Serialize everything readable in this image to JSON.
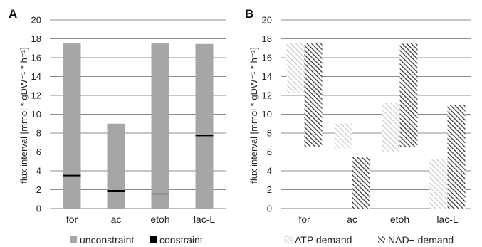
{
  "chart_data": [
    {
      "type": "bar",
      "panel_label": "A",
      "ylabel": "flux interval [mmol * gDW⁻¹ * h⁻¹]",
      "ylim": [
        0,
        20
      ],
      "yticks": [
        0,
        2,
        4,
        6,
        8,
        10,
        12,
        14,
        16,
        18,
        20
      ],
      "categories": [
        "for",
        "ac",
        "etoh",
        "lac-L"
      ],
      "grid": true,
      "legend_position": "bottom",
      "series": [
        {
          "name": "unconstraint",
          "kind": "floating_range",
          "color": "#a6a6a6",
          "ranges": [
            [
              0,
              17.5
            ],
            [
              0,
              9.0
            ],
            [
              0,
              17.5
            ],
            [
              0,
              17.45
            ]
          ]
        },
        {
          "name": "constraint",
          "kind": "marker_value",
          "color": "#000000",
          "values": [
            3.5,
            1.85,
            1.55,
            7.75
          ]
        }
      ]
    },
    {
      "type": "bar",
      "panel_label": "B",
      "ylabel": "flux interval [mmol * gDW⁻¹ * h⁻¹]",
      "ylim": [
        0,
        20
      ],
      "yticks": [
        0,
        2,
        4,
        6,
        8,
        10,
        12,
        14,
        16,
        18,
        20
      ],
      "categories": [
        "for",
        "ac",
        "etoh",
        "lac-L"
      ],
      "grid": true,
      "legend_position": "bottom",
      "series": [
        {
          "name": "ATP demand",
          "kind": "floating_range",
          "pattern": "light-diagonal-hatch",
          "ranges": [
            [
              12.3,
              17.5
            ],
            [
              6.3,
              9.0
            ],
            [
              6.0,
              11.2
            ],
            [
              0,
              5.2
            ]
          ]
        },
        {
          "name": "NAD+ demand",
          "kind": "floating_range",
          "pattern": "dark-diagonal-hatch",
          "ranges": [
            [
              6.5,
              17.5
            ],
            [
              0,
              5.5
            ],
            [
              6.5,
              17.5
            ],
            [
              0,
              11.0
            ]
          ]
        }
      ]
    }
  ]
}
